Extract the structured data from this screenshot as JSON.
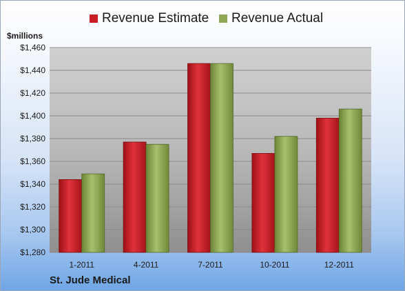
{
  "legend": {
    "estimate_label": "Revenue Estimate",
    "actual_label": "Revenue Actual"
  },
  "footer": {
    "company": "St. Jude Medical"
  },
  "colors": {
    "estimate": "#c81d25",
    "actual": "#8fa856"
  },
  "chart_data": {
    "type": "bar",
    "ylabel": "$millions",
    "categories": [
      "1-2011",
      "4-2011",
      "7-2011",
      "10-2011",
      "12-2011"
    ],
    "series": [
      {
        "name": "Revenue Estimate",
        "values": [
          1344,
          1377,
          1446,
          1367,
          1398
        ]
      },
      {
        "name": "Revenue Actual",
        "values": [
          1349,
          1375,
          1446,
          1382,
          1406
        ]
      }
    ],
    "ylim": [
      1280,
      1460
    ],
    "yticks": [
      "$1,280",
      "$1,300",
      "$1,320",
      "$1,340",
      "$1,360",
      "$1,380",
      "$1,400",
      "$1,420",
      "$1,440",
      "$1,460"
    ],
    "grid": true,
    "legend_position": "top"
  }
}
